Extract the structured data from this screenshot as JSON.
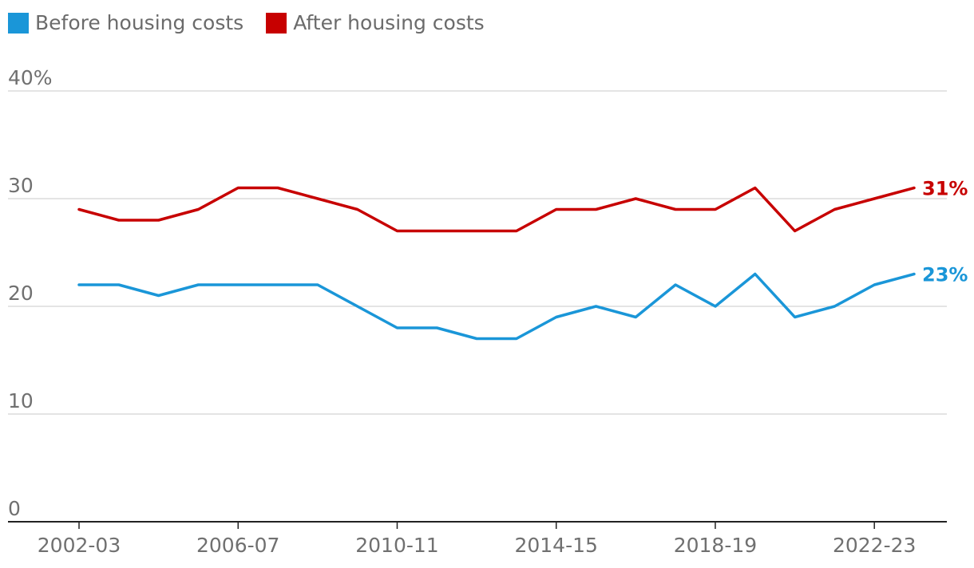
{
  "legend": {
    "before_label": "Before housing costs",
    "after_label": "After housing costs"
  },
  "colors": {
    "before": "#1a96d8",
    "after": "#c70000",
    "grid": "#c9c9c9",
    "axis": "#222222",
    "tick_text": "#707070"
  },
  "chart_data": {
    "type": "line",
    "x": [
      "2002-03",
      "2003-04",
      "2004-05",
      "2005-06",
      "2006-07",
      "2007-08",
      "2008-09",
      "2009-10",
      "2010-11",
      "2011-12",
      "2012-13",
      "2013-14",
      "2014-15",
      "2015-16",
      "2016-17",
      "2017-18",
      "2018-19",
      "2019-20",
      "2020-21",
      "2021-22",
      "2022-23",
      "2023-24"
    ],
    "x_tick_labels": [
      "2002-03",
      "2006-07",
      "2010-11",
      "2014-15",
      "2018-19",
      "2022-23"
    ],
    "y_tick_labels": [
      "40%",
      "30",
      "20",
      "10",
      "0"
    ],
    "y_ticks": [
      40,
      30,
      20,
      10,
      0
    ],
    "ylim": [
      0,
      40
    ],
    "grid": true,
    "legend_position": "top-left",
    "series": [
      {
        "name": "Before housing costs",
        "key": "before",
        "values": [
          22,
          22,
          21,
          22,
          22,
          22,
          22,
          20,
          18,
          18,
          17,
          17,
          19,
          20,
          19,
          22,
          20,
          23,
          19,
          20,
          22,
          23
        ],
        "end_label": "23%"
      },
      {
        "name": "After housing costs",
        "key": "after",
        "values": [
          29,
          28,
          28,
          29,
          31,
          31,
          30,
          29,
          27,
          27,
          27,
          27,
          29,
          29,
          30,
          29,
          29,
          31,
          27,
          29,
          30,
          31
        ],
        "end_label": "31%"
      }
    ]
  }
}
